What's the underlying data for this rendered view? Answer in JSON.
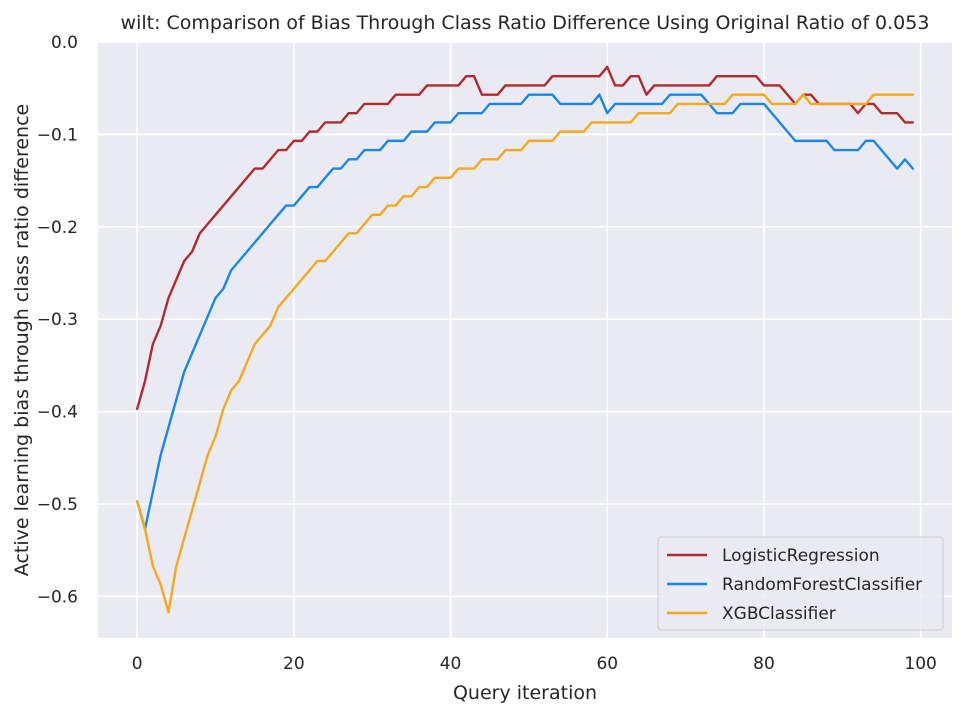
{
  "chart_data": {
    "type": "line",
    "title": "wilt: Comparison of Bias Through Class Ratio Difference Using Original Ratio of 0.053",
    "xlabel": "Query iteration",
    "ylabel": "Active learning bias through class ratio difference",
    "xlim": [
      -5,
      104
    ],
    "ylim": [
      -0.645,
      0.0
    ],
    "xticks": [
      0,
      20,
      40,
      60,
      80,
      100
    ],
    "yticks": [
      0.0,
      -0.1,
      -0.2,
      -0.3,
      -0.4,
      -0.5,
      -0.6
    ],
    "xtick_labels": [
      "0",
      "20",
      "40",
      "60",
      "80",
      "100"
    ],
    "ytick_labels": [
      "0.0",
      "−0.1",
      "−0.2",
      "−0.3",
      "−0.4",
      "−0.5",
      "−0.6"
    ],
    "grid": true,
    "legend_position": "lower-right",
    "background": "#eaeaf2",
    "series": [
      {
        "name": "LogisticRegression",
        "color": "#b22a2e",
        "x": [
          0,
          1,
          2,
          3,
          4,
          5,
          6,
          7,
          8,
          9,
          10,
          11,
          12,
          13,
          14,
          15,
          16,
          17,
          18,
          19,
          20,
          21,
          22,
          23,
          24,
          25,
          26,
          27,
          28,
          29,
          30,
          31,
          32,
          33,
          34,
          35,
          36,
          37,
          38,
          39,
          40,
          41,
          42,
          43,
          44,
          45,
          46,
          47,
          48,
          49,
          50,
          51,
          52,
          53,
          54,
          55,
          56,
          57,
          58,
          59,
          60,
          61,
          62,
          63,
          64,
          65,
          66,
          67,
          68,
          69,
          70,
          71,
          72,
          73,
          74,
          75,
          76,
          77,
          78,
          79,
          80,
          81,
          82,
          83,
          84,
          85,
          86,
          87,
          88,
          89,
          90,
          91,
          92,
          93,
          94,
          95,
          96,
          97,
          98,
          99
        ],
        "values": [
          -0.397,
          -0.367,
          -0.327,
          -0.307,
          -0.277,
          -0.257,
          -0.237,
          -0.227,
          -0.207,
          -0.197,
          -0.187,
          -0.177,
          -0.167,
          -0.157,
          -0.147,
          -0.137,
          -0.137,
          -0.127,
          -0.117,
          -0.117,
          -0.107,
          -0.107,
          -0.097,
          -0.097,
          -0.087,
          -0.087,
          -0.087,
          -0.077,
          -0.077,
          -0.067,
          -0.067,
          -0.067,
          -0.067,
          -0.057,
          -0.057,
          -0.057,
          -0.057,
          -0.047,
          -0.047,
          -0.047,
          -0.047,
          -0.047,
          -0.037,
          -0.037,
          -0.057,
          -0.057,
          -0.057,
          -0.047,
          -0.047,
          -0.047,
          -0.047,
          -0.047,
          -0.047,
          -0.037,
          -0.037,
          -0.037,
          -0.037,
          -0.037,
          -0.037,
          -0.037,
          -0.027,
          -0.047,
          -0.047,
          -0.037,
          -0.037,
          -0.057,
          -0.047,
          -0.047,
          -0.047,
          -0.047,
          -0.047,
          -0.047,
          -0.047,
          -0.047,
          -0.037,
          -0.037,
          -0.037,
          -0.037,
          -0.037,
          -0.037,
          -0.047,
          -0.047,
          -0.047,
          -0.057,
          -0.067,
          -0.057,
          -0.057,
          -0.067,
          -0.067,
          -0.067,
          -0.067,
          -0.067,
          -0.077,
          -0.067,
          -0.067,
          -0.077,
          -0.077,
          -0.077,
          -0.087,
          -0.087
        ]
      },
      {
        "name": "RandomForestClassifier",
        "color": "#1a87e8",
        "x": [
          0,
          1,
          2,
          3,
          4,
          5,
          6,
          7,
          8,
          9,
          10,
          11,
          12,
          13,
          14,
          15,
          16,
          17,
          18,
          19,
          20,
          21,
          22,
          23,
          24,
          25,
          26,
          27,
          28,
          29,
          30,
          31,
          32,
          33,
          34,
          35,
          36,
          37,
          38,
          39,
          40,
          41,
          42,
          43,
          44,
          45,
          46,
          47,
          48,
          49,
          50,
          51,
          52,
          53,
          54,
          55,
          56,
          57,
          58,
          59,
          60,
          61,
          62,
          63,
          64,
          65,
          66,
          67,
          68,
          69,
          70,
          71,
          72,
          73,
          74,
          75,
          76,
          77,
          78,
          79,
          80,
          81,
          82,
          83,
          84,
          85,
          86,
          87,
          88,
          89,
          90,
          91,
          92,
          93,
          94,
          95,
          96,
          97,
          98,
          99
        ],
        "values": [
          -0.497,
          -0.527,
          -0.487,
          -0.447,
          -0.417,
          -0.387,
          -0.357,
          -0.337,
          -0.317,
          -0.297,
          -0.277,
          -0.267,
          -0.247,
          -0.237,
          -0.227,
          -0.217,
          -0.207,
          -0.197,
          -0.187,
          -0.177,
          -0.177,
          -0.167,
          -0.157,
          -0.157,
          -0.147,
          -0.137,
          -0.137,
          -0.127,
          -0.127,
          -0.117,
          -0.117,
          -0.117,
          -0.107,
          -0.107,
          -0.107,
          -0.097,
          -0.097,
          -0.097,
          -0.087,
          -0.087,
          -0.087,
          -0.077,
          -0.077,
          -0.077,
          -0.077,
          -0.067,
          -0.067,
          -0.067,
          -0.067,
          -0.067,
          -0.057,
          -0.057,
          -0.057,
          -0.057,
          -0.067,
          -0.067,
          -0.067,
          -0.067,
          -0.067,
          -0.057,
          -0.077,
          -0.067,
          -0.067,
          -0.067,
          -0.067,
          -0.067,
          -0.067,
          -0.067,
          -0.057,
          -0.057,
          -0.057,
          -0.057,
          -0.057,
          -0.067,
          -0.077,
          -0.077,
          -0.077,
          -0.067,
          -0.067,
          -0.067,
          -0.067,
          -0.077,
          -0.087,
          -0.097,
          -0.107,
          -0.107,
          -0.107,
          -0.107,
          -0.107,
          -0.117,
          -0.117,
          -0.117,
          -0.117,
          -0.107,
          -0.107,
          -0.117,
          -0.127,
          -0.137,
          -0.127,
          -0.137
        ]
      },
      {
        "name": "XGBClassifier",
        "color": "#f5a81c",
        "x": [
          0,
          1,
          2,
          3,
          4,
          5,
          6,
          7,
          8,
          9,
          10,
          11,
          12,
          13,
          14,
          15,
          16,
          17,
          18,
          19,
          20,
          21,
          22,
          23,
          24,
          25,
          26,
          27,
          28,
          29,
          30,
          31,
          32,
          33,
          34,
          35,
          36,
          37,
          38,
          39,
          40,
          41,
          42,
          43,
          44,
          45,
          46,
          47,
          48,
          49,
          50,
          51,
          52,
          53,
          54,
          55,
          56,
          57,
          58,
          59,
          60,
          61,
          62,
          63,
          64,
          65,
          66,
          67,
          68,
          69,
          70,
          71,
          72,
          73,
          74,
          75,
          76,
          77,
          78,
          79,
          80,
          81,
          82,
          83,
          84,
          85,
          86,
          87,
          88,
          89,
          90,
          91,
          92,
          93,
          94,
          95,
          96,
          97,
          98,
          99
        ],
        "values": [
          -0.497,
          -0.527,
          -0.567,
          -0.587,
          -0.617,
          -0.567,
          -0.537,
          -0.507,
          -0.477,
          -0.447,
          -0.427,
          -0.397,
          -0.377,
          -0.367,
          -0.347,
          -0.327,
          -0.317,
          -0.307,
          -0.287,
          -0.277,
          -0.267,
          -0.257,
          -0.247,
          -0.237,
          -0.237,
          -0.227,
          -0.217,
          -0.207,
          -0.207,
          -0.197,
          -0.187,
          -0.187,
          -0.177,
          -0.177,
          -0.167,
          -0.167,
          -0.157,
          -0.157,
          -0.147,
          -0.147,
          -0.147,
          -0.137,
          -0.137,
          -0.137,
          -0.127,
          -0.127,
          -0.127,
          -0.117,
          -0.117,
          -0.117,
          -0.107,
          -0.107,
          -0.107,
          -0.107,
          -0.097,
          -0.097,
          -0.097,
          -0.097,
          -0.087,
          -0.087,
          -0.087,
          -0.087,
          -0.087,
          -0.087,
          -0.077,
          -0.077,
          -0.077,
          -0.077,
          -0.077,
          -0.067,
          -0.067,
          -0.067,
          -0.067,
          -0.067,
          -0.067,
          -0.067,
          -0.057,
          -0.057,
          -0.057,
          -0.057,
          -0.057,
          -0.067,
          -0.067,
          -0.067,
          -0.067,
          -0.057,
          -0.067,
          -0.067,
          -0.067,
          -0.067,
          -0.067,
          -0.067,
          -0.067,
          -0.067,
          -0.057,
          -0.057,
          -0.057,
          -0.057,
          -0.057,
          -0.057
        ]
      }
    ]
  }
}
